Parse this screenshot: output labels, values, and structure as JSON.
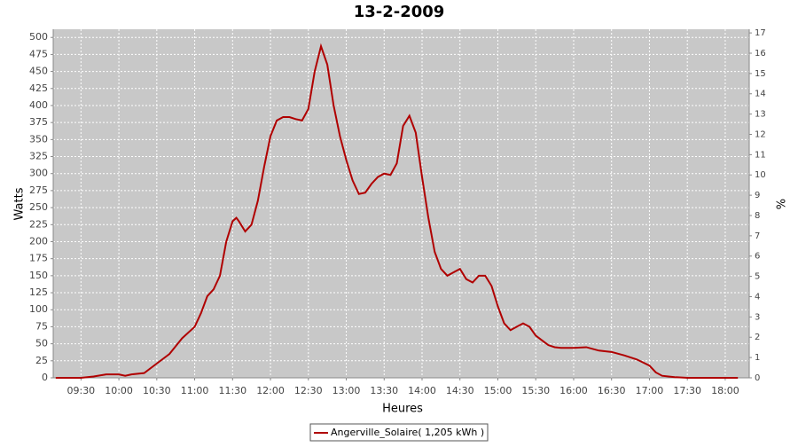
{
  "chart_data": {
    "type": "line",
    "title": "13-2-2009",
    "x_label": "Heures",
    "y_label": "Watts",
    "y2_label": "%",
    "x": [
      "09:10",
      "09:20",
      "09:30",
      "09:40",
      "09:50",
      "10:00",
      "10:05",
      "10:10",
      "10:20",
      "10:30",
      "10:40",
      "10:50",
      "11:00",
      "11:05",
      "11:10",
      "11:15",
      "11:20",
      "11:25",
      "11:30",
      "11:33",
      "11:35",
      "11:40",
      "11:45",
      "11:50",
      "11:55",
      "12:00",
      "12:05",
      "12:10",
      "12:15",
      "12:20",
      "12:25",
      "12:30",
      "12:35",
      "12:40",
      "12:45",
      "12:50",
      "12:55",
      "13:00",
      "13:05",
      "13:10",
      "13:15",
      "13:20",
      "13:25",
      "13:30",
      "13:35",
      "13:40",
      "13:45",
      "13:50",
      "13:55",
      "14:00",
      "14:05",
      "14:10",
      "14:15",
      "14:20",
      "14:25",
      "14:30",
      "14:35",
      "14:40",
      "14:45",
      "14:50",
      "14:55",
      "15:00",
      "15:05",
      "15:10",
      "15:15",
      "15:20",
      "15:25",
      "15:30",
      "15:35",
      "15:40",
      "15:45",
      "15:50",
      "16:00",
      "16:10",
      "16:20",
      "16:30",
      "16:40",
      "16:50",
      "17:00",
      "17:05",
      "17:10",
      "17:20",
      "17:30",
      "17:40",
      "17:50",
      "18:00",
      "18:10"
    ],
    "series": [
      {
        "name": "Angerville_Solaire( 1,205 kWh )",
        "color": "#b00000",
        "values": [
          0,
          0,
          0,
          2,
          5,
          5,
          3,
          5,
          7,
          21,
          35,
          58,
          75,
          95,
          120,
          130,
          150,
          200,
          230,
          235,
          230,
          215,
          225,
          260,
          310,
          355,
          378,
          383,
          383,
          380,
          378,
          395,
          450,
          487,
          460,
          400,
          355,
          320,
          290,
          270,
          272,
          285,
          295,
          300,
          298,
          315,
          370,
          385,
          360,
          295,
          235,
          185,
          160,
          150,
          155,
          160,
          145,
          140,
          150,
          150,
          135,
          105,
          80,
          70,
          75,
          80,
          75,
          62,
          55,
          48,
          45,
          44,
          44,
          45,
          40,
          38,
          33,
          27,
          18,
          8,
          3,
          1,
          0,
          0,
          0,
          0,
          0
        ]
      }
    ],
    "xlim": [
      "09:08",
      "18:19"
    ],
    "xticks": [
      "09:30",
      "10:00",
      "10:30",
      "11:00",
      "11:30",
      "12:00",
      "12:30",
      "13:00",
      "13:30",
      "14:00",
      "14:30",
      "15:00",
      "15:30",
      "16:00",
      "16:30",
      "17:00",
      "17:30",
      "18:00"
    ],
    "ylim": [
      0,
      512
    ],
    "yticks": [
      0,
      25,
      50,
      75,
      100,
      125,
      150,
      175,
      200,
      225,
      250,
      275,
      300,
      325,
      350,
      375,
      400,
      425,
      450,
      475,
      500
    ],
    "y2lim": [
      0,
      17.18
    ],
    "y2ticks": [
      0,
      1,
      2,
      3,
      4,
      5,
      6,
      7,
      8,
      9,
      10,
      11,
      12,
      13,
      14,
      15,
      16,
      17
    ],
    "grid": true,
    "legend": "bottom"
  }
}
